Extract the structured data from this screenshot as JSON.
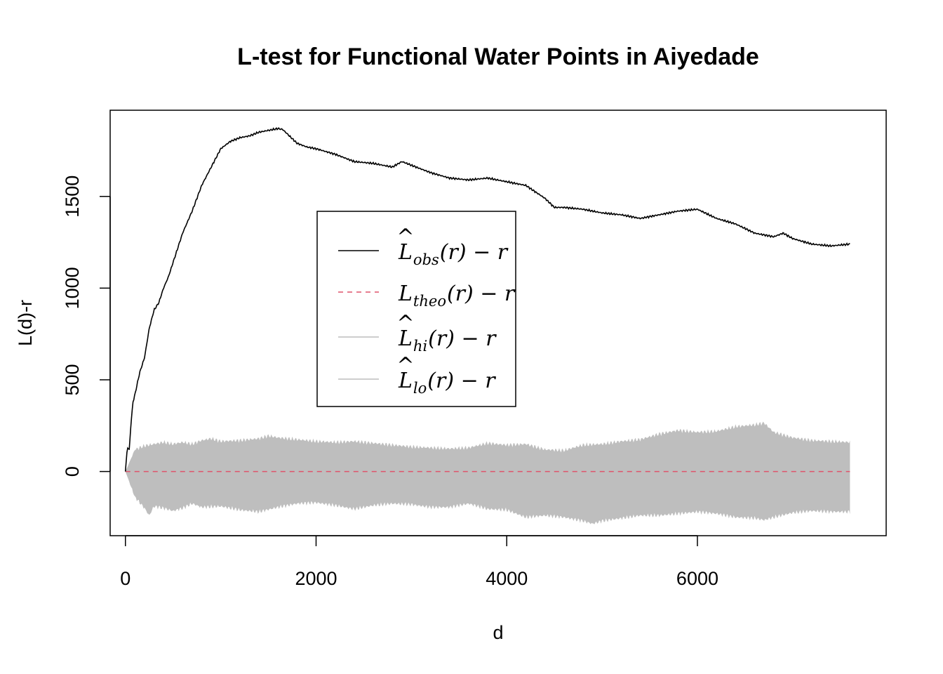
{
  "chart_data": {
    "type": "line",
    "title": "L-test for Functional Water Points in Aiyedade",
    "xlabel": "d",
    "ylabel": "L(d)-r",
    "xlim": [
      -160,
      7980
    ],
    "ylim": [
      -350,
      1970
    ],
    "xticks": [
      0,
      2000,
      4000,
      6000
    ],
    "yticks": [
      0,
      500,
      1000,
      1500
    ],
    "legend_position": "center",
    "series": [
      {
        "name_main": "L",
        "name_sub": "obs",
        "name_tail": "(r) − r",
        "hat": true,
        "style": "solid",
        "color": "#000000",
        "x": [
          0,
          20,
          40,
          60,
          80,
          100,
          150,
          200,
          250,
          300,
          350,
          400,
          450,
          500,
          600,
          700,
          800,
          900,
          1000,
          1100,
          1200,
          1300,
          1400,
          1500,
          1600,
          1650,
          1700,
          1800,
          1900,
          2000,
          2200,
          2400,
          2600,
          2800,
          2900,
          3000,
          3200,
          3400,
          3600,
          3800,
          4000,
          4200,
          4400,
          4500,
          4600,
          4700,
          4800,
          5000,
          5200,
          5400,
          5600,
          5800,
          6000,
          6200,
          6400,
          6600,
          6800,
          6900,
          7000,
          7200,
          7400,
          7600
        ],
        "values": [
          0,
          130,
          120,
          270,
          380,
          420,
          540,
          620,
          780,
          880,
          920,
          1000,
          1060,
          1140,
          1300,
          1420,
          1560,
          1660,
          1760,
          1800,
          1820,
          1830,
          1850,
          1860,
          1870,
          1865,
          1840,
          1790,
          1770,
          1760,
          1730,
          1690,
          1680,
          1660,
          1690,
          1670,
          1630,
          1600,
          1590,
          1600,
          1580,
          1560,
          1490,
          1440,
          1440,
          1435,
          1430,
          1410,
          1400,
          1380,
          1400,
          1420,
          1430,
          1380,
          1350,
          1300,
          1280,
          1300,
          1270,
          1240,
          1230,
          1240
        ]
      },
      {
        "name_main": "L",
        "name_sub": "theo",
        "name_tail": "(r) − r",
        "hat": false,
        "style": "dashed",
        "color": "#DF536B",
        "x": [
          0,
          7600
        ],
        "values": [
          0,
          0
        ]
      },
      {
        "name_main": "L",
        "name_sub": "hi",
        "name_tail": "(r) − r",
        "hat": true,
        "style": "solid",
        "color": "#BEBEBE",
        "x": [
          0,
          100,
          200,
          300,
          400,
          500,
          600,
          700,
          800,
          900,
          1000,
          1200,
          1400,
          1500,
          1600,
          1800,
          2000,
          2200,
          2400,
          2600,
          2800,
          3000,
          3200,
          3400,
          3600,
          3800,
          4000,
          4200,
          4400,
          4600,
          4800,
          5000,
          5200,
          5400,
          5600,
          5800,
          6000,
          6200,
          6400,
          6600,
          6700,
          6800,
          7000,
          7200,
          7400,
          7600
        ],
        "values": [
          0,
          120,
          140,
          150,
          160,
          150,
          160,
          150,
          170,
          180,
          165,
          170,
          180,
          195,
          185,
          175,
          165,
          160,
          165,
          155,
          145,
          135,
          130,
          125,
          130,
          155,
          145,
          150,
          120,
          115,
          145,
          150,
          165,
          175,
          205,
          225,
          215,
          220,
          245,
          255,
          265,
          215,
          185,
          170,
          165,
          160
        ]
      },
      {
        "name_main": "L",
        "name_sub": "lo",
        "name_tail": "(r) − r",
        "hat": true,
        "style": "solid",
        "color": "#BEBEBE",
        "x": [
          0,
          100,
          200,
          250,
          300,
          400,
          500,
          600,
          700,
          800,
          1000,
          1200,
          1400,
          1600,
          1800,
          2000,
          2200,
          2400,
          2600,
          2800,
          3000,
          3200,
          3400,
          3600,
          3800,
          4000,
          4200,
          4400,
          4600,
          4800,
          4900,
          5000,
          5200,
          5400,
          5600,
          5800,
          6000,
          6200,
          6400,
          6600,
          6700,
          6800,
          7000,
          7200,
          7400,
          7600
        ],
        "values": [
          0,
          -140,
          -200,
          -240,
          -190,
          -200,
          -215,
          -200,
          -175,
          -195,
          -190,
          -210,
          -220,
          -195,
          -175,
          -170,
          -185,
          -205,
          -185,
          -175,
          -180,
          -195,
          -195,
          -175,
          -205,
          -210,
          -250,
          -240,
          -250,
          -270,
          -285,
          -270,
          -255,
          -240,
          -240,
          -230,
          -220,
          -230,
          -250,
          -255,
          -265,
          -250,
          -225,
          -215,
          -220,
          -220
        ]
      }
    ]
  }
}
